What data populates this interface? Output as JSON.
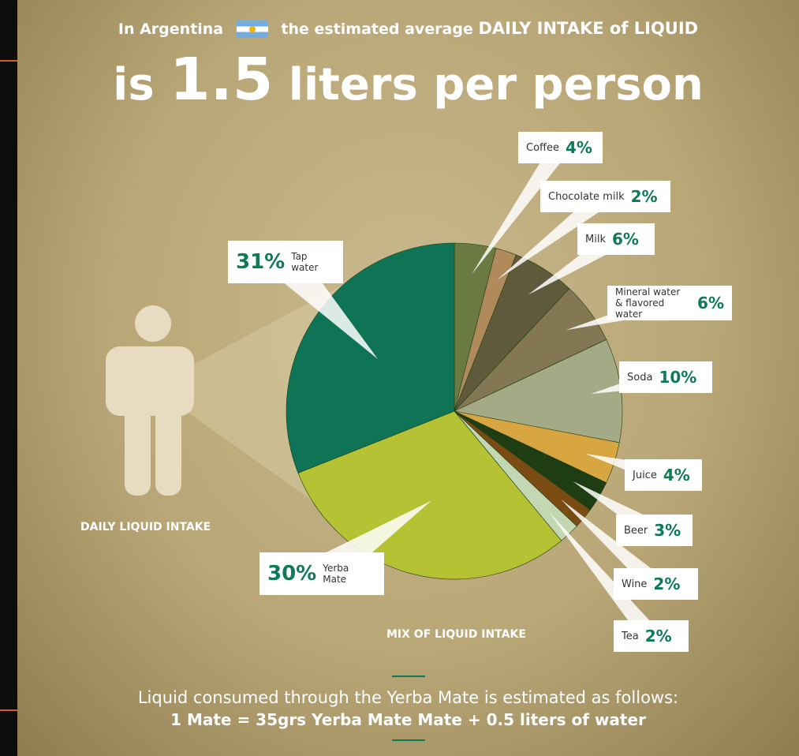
{
  "header": {
    "line1_prefix": "In Argentina",
    "line1_middle": "the estimated average",
    "line1_emphasis": "DAILY INTAKE of LIQUID",
    "headline_is": "is",
    "headline_number": "1.5",
    "headline_rest": "liters per person"
  },
  "labels": {
    "daily_liquid_intake": "DAILY LIQUID INTAKE",
    "mix_of_liquid_intake": "MIX OF LIQUID INTAKE"
  },
  "footer": {
    "line1": "Liquid consumed through the Yerba Mate is estimated as follows:",
    "line2": "1 Mate = 35grs Yerba Mate Mate + 0.5 liters of water"
  },
  "icons": {
    "person": "person-silhouette-icon",
    "flag": "argentina-flag-icon"
  },
  "colors": {
    "accent_green": "#0f7a5a",
    "person": "#e7dcc2"
  },
  "chart_data": {
    "type": "pie",
    "title": "",
    "start_angle_deg": 0,
    "direction": "clockwise",
    "slices": [
      {
        "name": "Coffee",
        "value": 4,
        "label": "4%",
        "color": "#6b7a42"
      },
      {
        "name": "Chocolate milk",
        "value": 2,
        "label": "2%",
        "color": "#b08a5a"
      },
      {
        "name": "Milk",
        "value": 6,
        "label": "6%",
        "color": "#5f5a3c"
      },
      {
        "name": "Mineral water\n& flavored water",
        "value": 6,
        "label": "6%",
        "color": "#847754"
      },
      {
        "name": "Soda",
        "value": 10,
        "label": "10%",
        "color": "#a4aa86"
      },
      {
        "name": "Juice",
        "value": 4,
        "label": "4%",
        "color": "#d7a640"
      },
      {
        "name": "Beer",
        "value": 3,
        "label": "3%",
        "color": "#1f3d12"
      },
      {
        "name": "Wine",
        "value": 2,
        "label": "2%",
        "color": "#7a4b12"
      },
      {
        "name": "Tea",
        "value": 2,
        "label": "2%",
        "color": "#c3d7b2"
      },
      {
        "name": "Yerba\nMate",
        "value": 30,
        "label": "30%",
        "color": "#b5c234"
      },
      {
        "name": "Tap\nwater",
        "value": 31,
        "label": "31%",
        "color": "#0f7356"
      }
    ]
  }
}
